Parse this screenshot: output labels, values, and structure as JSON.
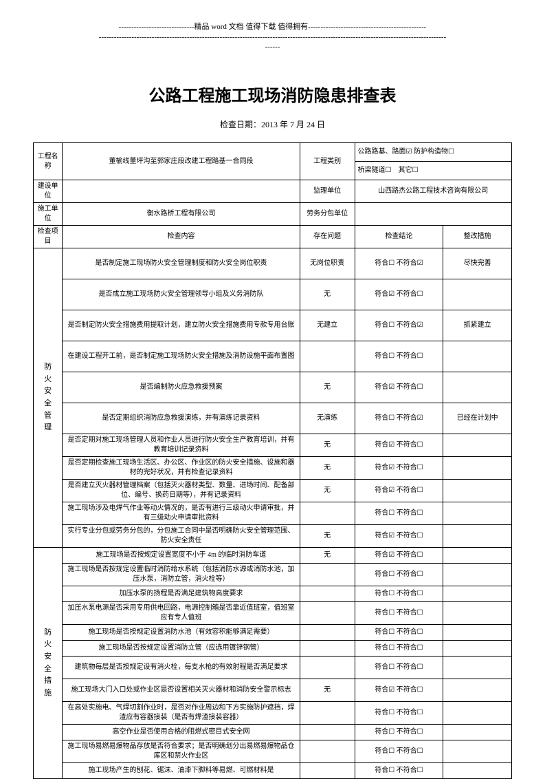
{
  "header1": "------------------------------精品 word 文档 值得下载 值得拥有-----------------------------------------------",
  "header2": "------------------------------------------------------------------------------------------------------------------------------------------",
  "header3": "------",
  "title": "公路工程施工现场消防隐患排查表",
  "date": "检查日期：2013 年 7 月 24 日",
  "labels": {
    "projectName": "工程名称",
    "projectNameVal": "董榆线董坪沟至郭家庄段改建工程路基一合同段",
    "projectType": "工程类别",
    "projectTypeVal1": "公路路基、路面☑ 防护构造物☐",
    "projectTypeVal2": "桥梁隧道☐　其它☐",
    "buildUnit": "建设单位",
    "supervise": "监理单位",
    "superviseVal": "山西路杰公路工程技术咨询有限公司",
    "constructUnit": "施工单位",
    "constructUnitVal": "衡水路桥工程有限公司",
    "laborUnit": "劳务分包单位",
    "checkItem": "检查项目",
    "checkContent": "检查内容",
    "existIssue": "存在问题",
    "checkResult": "检查结论",
    "fixMeasure": "整改措施"
  },
  "cat1": "防火安全管理",
  "cat2": "防火安全措施",
  "rows": [
    {
      "content": "是否制定施工现场防火安全管理制度和防火安全岗位职责",
      "issue": "无岗位职责",
      "result": "符合☐ 不符合☑",
      "fix": "尽快完善",
      "h": "tall"
    },
    {
      "content": "是否成立施工现场防火安全管理领导小组及义务消防队",
      "issue": "无",
      "result": "符合☑ 不符合☐",
      "fix": "",
      "h": "tall"
    },
    {
      "content": "是否制定防火安全措施费用提取计划，建立防火安全措施费用专款专用台账",
      "issue": "无建立",
      "result": "符合☐ 不符合☑",
      "fix": "抓紧建立",
      "h": "tall"
    },
    {
      "content": "在建设工程开工前，是否制定施工现场防火安全措施及消防设施平面布置图",
      "issue": "",
      "result": "符合☐ 不符合☐",
      "fix": "",
      "h": "tall"
    },
    {
      "content": "是否编制防火应急救援预案",
      "issue": "无",
      "result": "符合☑ 不符合☐",
      "fix": "",
      "h": "tall"
    },
    {
      "content": "是否定期组织消防应急救援演练，并有演练记录资料",
      "issue": "无演练",
      "result": "符合☐ 不符合☑",
      "fix": "已经在计划中",
      "h": "tall"
    },
    {
      "content": "是否定期对施工现场管理人员和作业人员进行防火安全生产教育培训，并有教育培训记录资料",
      "issue": "无",
      "result": "符合☑ 不符合☐",
      "fix": "",
      "h": "med"
    },
    {
      "content": "是否定期检查施工现场生活区、办公区、作业区的防火安全措施、设施和器材的完好状况，并有检查记录资料",
      "issue": "无",
      "result": "符合☑ 不符合☐",
      "fix": "",
      "h": "med"
    },
    {
      "content": "是否建立灭火器材管理档案（包括灭火器材类型、数量、进场时间、配备部位、编号、换药日期等），并有记录资料",
      "issue": "无",
      "result": "符合☑ 不符合☐",
      "fix": "",
      "h": "med"
    },
    {
      "content": "施工现场涉及电焊气作业等动火情况的，是否有进行三级动火申请审批，并有三级动火申请审批资料",
      "issue": "",
      "result": "符合☐ 不符合☐",
      "fix": "",
      "h": "med"
    },
    {
      "content": "实行专业分包或劳务分包的，分包施工合同中是否明确防火安全管理范围、防火安全责任",
      "issue": "无",
      "result": "符合☑ 不符合☐",
      "fix": "",
      "h": "med"
    },
    {
      "content": "施工现场是否按规定设置宽度不小于 4m 的临时消防车道",
      "issue": "无",
      "result": "符合☑ 不符合☐",
      "fix": "",
      "h": "short"
    },
    {
      "content": "施工现场是否按规定设置临时消防给水系统（包括消防水源或消防水池，加压水泵，消防立管，消火栓等）",
      "issue": "",
      "result": "符合☐ 不符合☐",
      "fix": "",
      "h": "med"
    },
    {
      "content": "加压水泵的扬程是否满足建筑物高度要求",
      "issue": "",
      "result": "符合☐ 不符合☐",
      "fix": "",
      "h": "short"
    },
    {
      "content": "加压水泵电源是否采用专用供电回路，电源控制箱是否靠近值班室，值班室应有专人值班",
      "issue": "",
      "result": "符合☐ 不符合☐",
      "fix": "",
      "h": "med"
    },
    {
      "content": "施工现场是否按规定设置消防水池（有效容积能够满足需要）",
      "issue": "",
      "result": "符合☐ 不符合☐",
      "fix": "",
      "h": "short"
    },
    {
      "content": "施工现场是否按规定设置消防立管（应选用镀锌钢管）",
      "issue": "",
      "result": "符合☐ 不符合☐",
      "fix": "",
      "h": "short"
    },
    {
      "content": "建筑物每层是否按规定设有消火栓，每支水枪的有效射程是否满足要求",
      "issue": "",
      "result": "符合☐ 不符合☐",
      "fix": "",
      "h": "med"
    },
    {
      "content": "施工现场大门入口处或作业区是否设置相关灭火器材和消防安全警示标志",
      "issue": "无",
      "result": "符合☑ 不符合☐",
      "fix": "",
      "h": "med"
    },
    {
      "content": "在高处实施电、气焊切割作业时，是否对作业周边和下方实施防护遮挡，焊渣应有容器接装（是否有焊渣接装容器）",
      "issue": "",
      "result": "符合☐ 不符合☐",
      "fix": "",
      "h": "med"
    },
    {
      "content": "高空作业是否使用合格的阻燃式密目式安全网",
      "issue": "",
      "result": "符合☐ 不符合☐",
      "fix": "",
      "h": "short"
    },
    {
      "content": "施工现场易燃易爆物品存放是否符合要求；是否明确划分出易燃易爆物品仓库区和禁火作业区",
      "issue": "",
      "result": "符合☐ 不符合☐",
      "fix": "",
      "h": "med"
    },
    {
      "content": "施工现场产生的刨花、锯沫、油漆下脚料等易燃、可燃材料是",
      "issue": "",
      "result": "符合☐ 不符合☐",
      "fix": "",
      "h": "short"
    }
  ]
}
